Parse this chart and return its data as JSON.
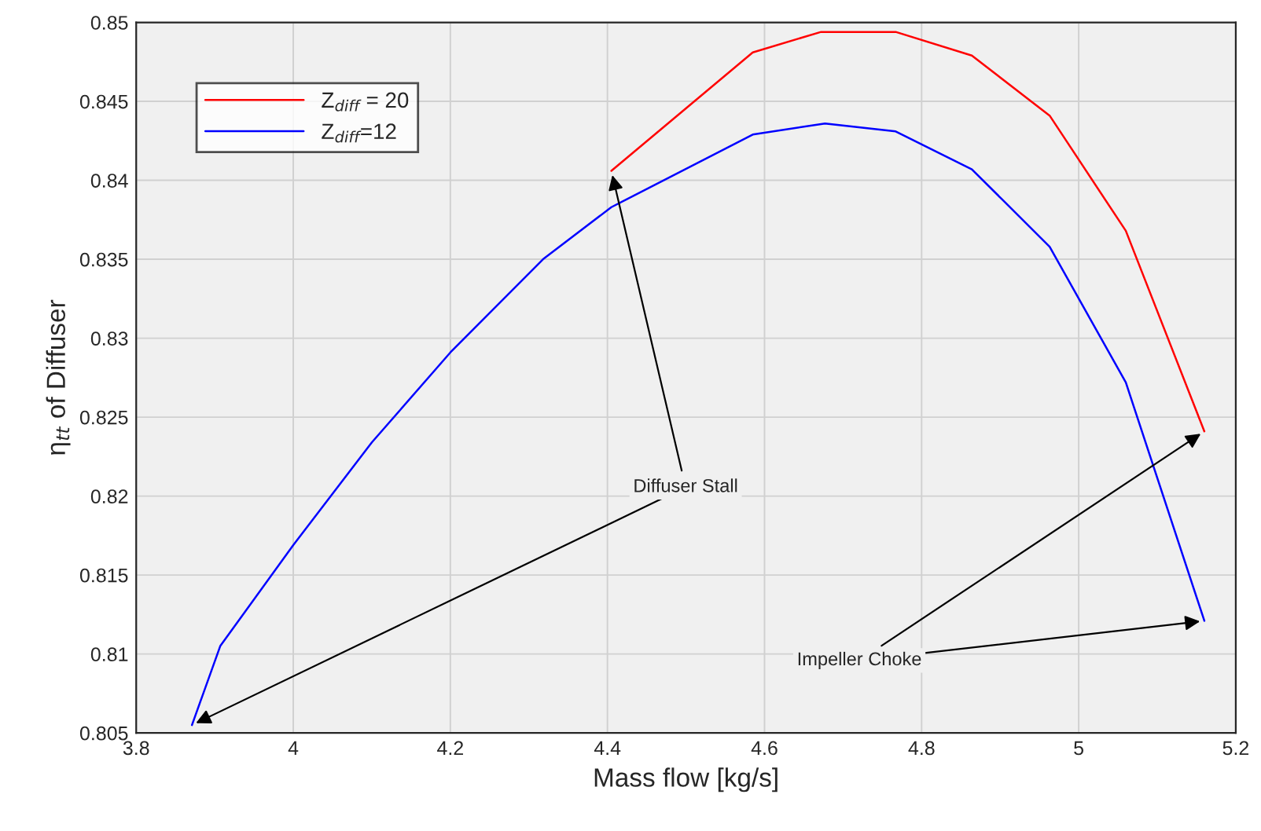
{
  "chart_data": {
    "type": "line",
    "xlabel": "Mass flow [kg/s]",
    "ylabel": "η$_{tt}$ of Diffuser",
    "xlim": [
      3.8,
      5.2
    ],
    "xticks": [
      3.8,
      4,
      4.2,
      4.4,
      4.6,
      4.8,
      5,
      5.2
    ],
    "ylim": [
      0.805,
      0.85
    ],
    "yticks": [
      0.805,
      0.81,
      0.815,
      0.82,
      0.825,
      0.83,
      0.835,
      0.84,
      0.845,
      0.85
    ],
    "grid": true,
    "legend": "top left",
    "line_style": "solid",
    "marker": "none",
    "series": [
      {
        "name": "Z$_{diff}$ = 20",
        "color": "#ff0000",
        "x": [
          4.405,
          4.585,
          4.672,
          4.767,
          4.864,
          4.963,
          5.06,
          5.16
        ],
        "values": [
          0.8406,
          0.8481,
          0.8494,
          0.8494,
          0.8479,
          0.8441,
          0.8368,
          0.8241
        ]
      },
      {
        "name": "Z$_{diff}$=12",
        "color": "#0000ff",
        "x": [
          3.871,
          3.907,
          4.0,
          4.1,
          4.2,
          4.318,
          4.405,
          4.585,
          4.677,
          4.767,
          4.864,
          4.963,
          5.06,
          5.16
        ],
        "values": [
          0.8055,
          0.8105,
          0.8169,
          0.8234,
          0.8291,
          0.835,
          0.8383,
          0.8429,
          0.8436,
          0.8431,
          0.8407,
          0.8358,
          0.8272,
          0.8121
        ]
      }
    ],
    "annotations": [
      {
        "text": "Diffuser Stall",
        "x": 4.405,
        "y": 0.8406
      },
      {
        "text": "Impeller Choke",
        "x": 5.16,
        "y": 0.8241
      }
    ]
  }
}
